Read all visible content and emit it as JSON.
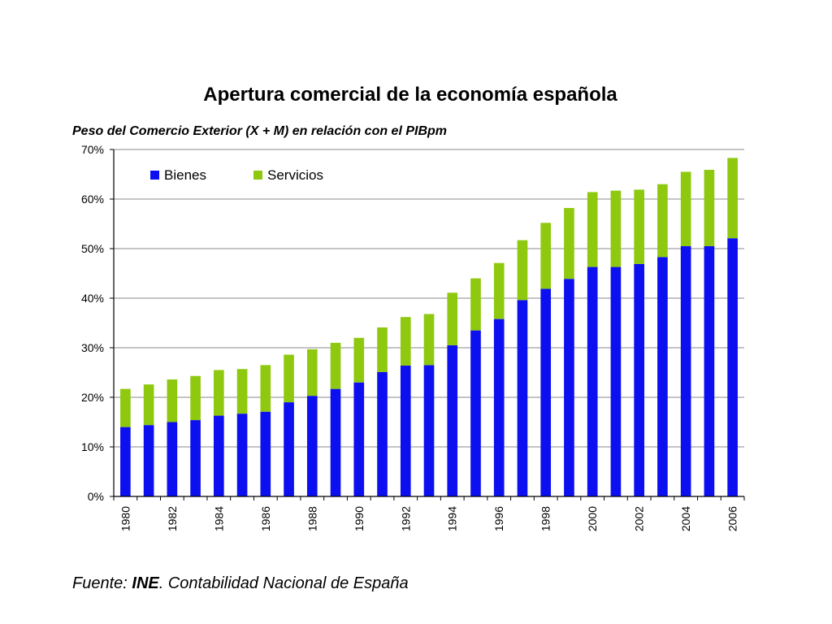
{
  "colors": {
    "bienes": "#0c0ff0",
    "servicios": "#8ec90f",
    "grid": "#8a8a8a",
    "axis": "#000000"
  },
  "chart_data": {
    "type": "bar",
    "stacked": true,
    "title": "Apertura comercial de la economía española",
    "subtitle": "Peso del Comercio Exterior (X + M) en relación con el PIBpm",
    "xlabel": "",
    "ylabel": "",
    "categories": [
      "1980",
      "1981",
      "1982",
      "1983",
      "1984",
      "1985",
      "1986",
      "1987",
      "1988",
      "1989",
      "1990",
      "1991",
      "1992",
      "1993",
      "1994",
      "1995",
      "1996",
      "1997",
      "1998",
      "1999",
      "2000",
      "2001",
      "2002",
      "2003",
      "2004",
      "2005",
      "2006"
    ],
    "x_tick_labels": [
      "1980",
      "",
      "1982",
      "",
      "1984",
      "",
      "1986",
      "",
      "1988",
      "",
      "1990",
      "",
      "1992",
      "",
      "1994",
      "",
      "1996",
      "",
      "1998",
      "",
      "2000",
      "",
      "2002",
      "",
      "2004",
      "",
      "2006"
    ],
    "y_tick_labels": [
      "0%",
      "10%",
      "20%",
      "30%",
      "40%",
      "50%",
      "60%",
      "70%"
    ],
    "ylim": [
      0,
      70
    ],
    "y_unit": "%",
    "grid": true,
    "legend_position": "top-left",
    "series": [
      {
        "name": "Bienes",
        "color_key": "bienes",
        "values": [
          14.0,
          14.4,
          15.0,
          15.4,
          16.3,
          16.7,
          17.1,
          19.0,
          20.3,
          21.7,
          23.0,
          25.1,
          26.4,
          26.5,
          30.5,
          33.5,
          35.8,
          39.6,
          41.9,
          43.9,
          46.3,
          46.3,
          46.9,
          48.3,
          50.5,
          50.5,
          52.1
        ]
      },
      {
        "name": "Servicios",
        "color_key": "servicios",
        "values": [
          7.7,
          8.2,
          8.6,
          8.9,
          9.2,
          9.0,
          9.4,
          9.6,
          9.4,
          9.3,
          9.0,
          9.0,
          9.8,
          10.3,
          10.6,
          10.5,
          11.3,
          12.1,
          13.3,
          14.3,
          15.1,
          15.4,
          15.0,
          14.7,
          15.0,
          15.4,
          16.2
        ]
      }
    ]
  },
  "source": {
    "prefix": "Fuente: ",
    "org": "INE",
    "rest": ". Contabilidad Nacional de España"
  }
}
